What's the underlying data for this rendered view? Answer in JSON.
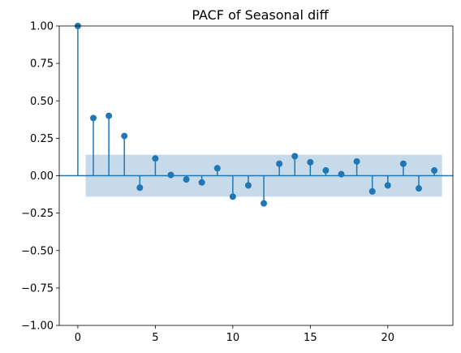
{
  "chart_data": {
    "type": "stem",
    "title": "PACF of Seasonal diff",
    "xlabel": "",
    "ylabel": "",
    "xlim": [
      -1.2,
      24.2
    ],
    "ylim": [
      -1.0,
      1.0
    ],
    "x_ticks": [
      0,
      5,
      10,
      15,
      20
    ],
    "x_tick_labels": [
      "0",
      "5",
      "10",
      "15",
      "20"
    ],
    "y_ticks": [
      -1.0,
      -0.75,
      -0.5,
      -0.25,
      0.0,
      0.25,
      0.5,
      0.75,
      1.0
    ],
    "y_tick_labels": [
      "−1.00",
      "−0.75",
      "−0.50",
      "−0.25",
      "0.00",
      "0.25",
      "0.50",
      "0.75",
      "1.00"
    ],
    "lags": [
      0,
      1,
      2,
      3,
      4,
      5,
      6,
      7,
      8,
      9,
      10,
      11,
      12,
      13,
      14,
      15,
      16,
      17,
      18,
      19,
      20,
      21,
      22,
      23
    ],
    "values": [
      1.0,
      0.385,
      0.4,
      0.265,
      -0.08,
      0.115,
      0.005,
      -0.025,
      -0.045,
      0.05,
      -0.14,
      -0.065,
      -0.185,
      0.08,
      0.13,
      0.09,
      0.035,
      0.01,
      0.095,
      -0.105,
      -0.065,
      0.08,
      -0.085,
      0.035
    ],
    "confidence_band": {
      "x_start": 0.5,
      "x_end": 23.5,
      "upper": 0.14,
      "lower": -0.14
    },
    "colors": {
      "stem": "#1f77b4",
      "band": "#b3cde3",
      "zero_line": "#1f77b4"
    },
    "grid": false
  }
}
